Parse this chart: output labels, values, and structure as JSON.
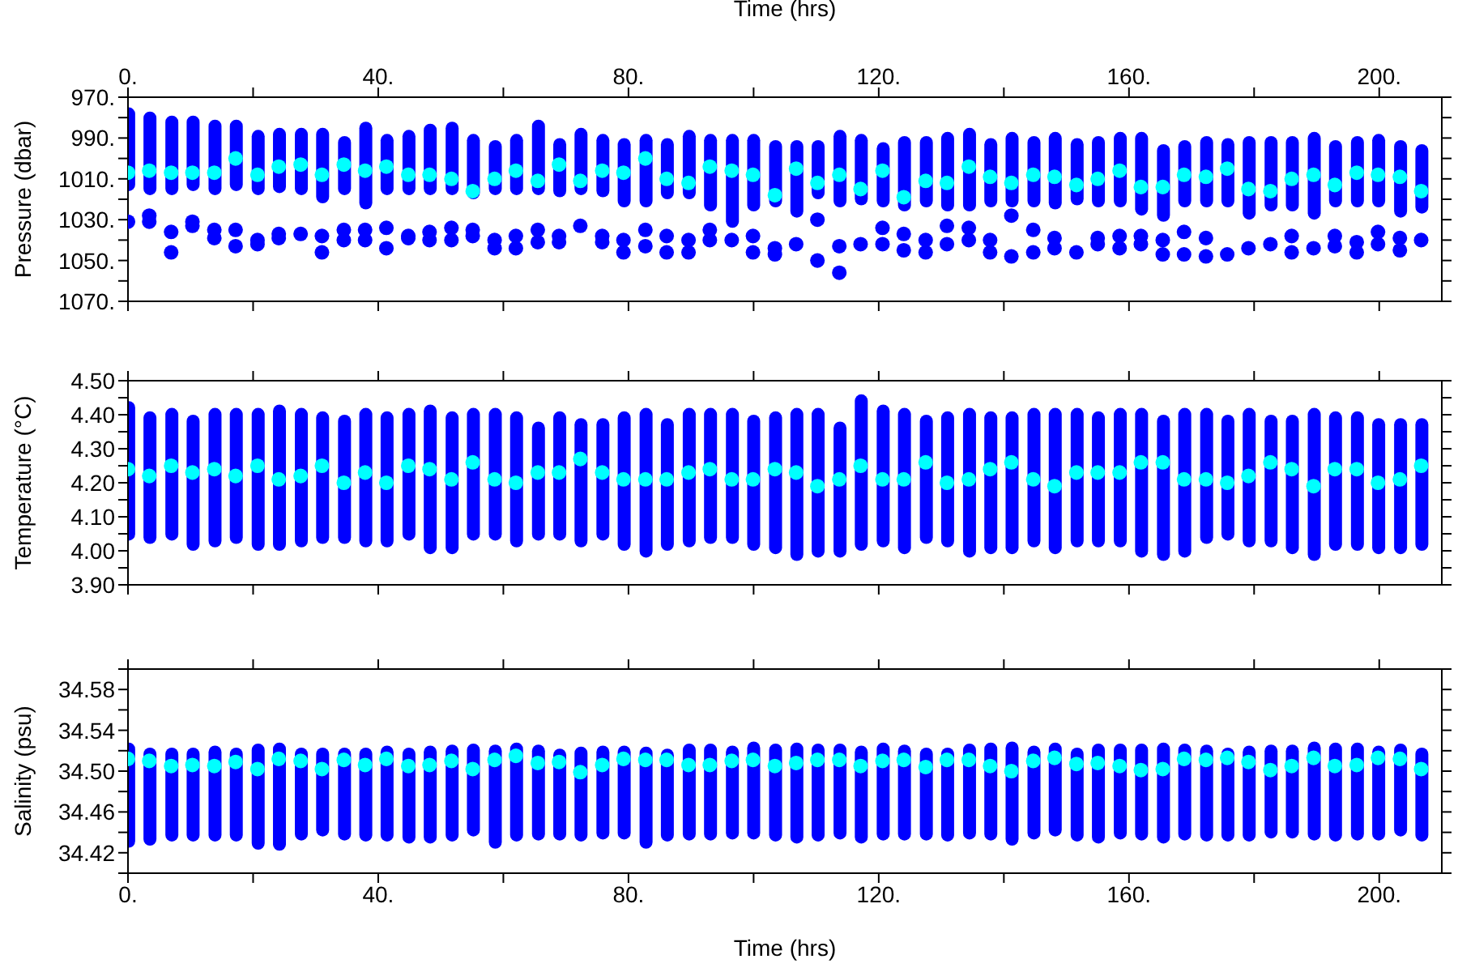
{
  "chart_data": [
    {
      "type": "scatter",
      "ylabel": "Pressure (dbar)",
      "x2label": "Time (hrs)",
      "marker": "circle",
      "tick_labels": "y",
      "x": [
        0,
        3.4,
        6.9,
        10.3,
        13.8,
        17.2,
        20.7,
        24.1,
        27.6,
        31.0,
        34.5,
        37.9,
        41.3,
        44.8,
        48.2,
        51.7,
        55.1,
        58.6,
        62.0,
        65.5,
        68.9,
        72.3,
        75.8,
        79.2,
        82.7,
        86.1,
        89.6,
        93.0,
        96.5,
        99.9,
        103.4,
        106.8,
        110.2,
        113.7,
        117.1,
        120.6,
        124.0,
        127.5,
        130.9,
        134.4,
        137.8,
        141.2,
        144.7,
        148.1,
        151.6,
        155.0,
        158.5,
        161.9,
        165.4,
        168.8,
        172.3,
        175.7,
        179.1,
        182.6,
        186.0,
        189.5,
        192.9,
        196.4,
        199.8,
        203.3,
        206.7
      ],
      "xlim": [
        0,
        210
      ],
      "xticks": [
        0,
        20,
        40,
        60,
        80,
        100,
        120,
        140,
        160,
        180,
        200
      ],
      "x2lim": [
        0,
        210
      ],
      "x2ticks": [
        {
          "value": 0,
          "label": "0."
        },
        {
          "value": 20,
          "label": null
        },
        {
          "value": 40,
          "label": "40."
        },
        {
          "value": 60,
          "label": null
        },
        {
          "value": 80,
          "label": "80."
        },
        {
          "value": 100,
          "label": null
        },
        {
          "value": 120,
          "label": "120."
        },
        {
          "value": 140,
          "label": null
        },
        {
          "value": 160,
          "label": "160."
        },
        {
          "value": 180,
          "label": null
        },
        {
          "value": 200,
          "label": "200."
        }
      ],
      "ylim": [
        1070,
        970
      ],
      "yticks": [
        {
          "value": 970,
          "label": "970."
        },
        {
          "value": 980,
          "label": null
        },
        {
          "value": 990,
          "label": "990."
        },
        {
          "value": 1000,
          "label": null
        },
        {
          "value": 1010,
          "label": "1010."
        },
        {
          "value": 1020,
          "label": null
        },
        {
          "value": 1030,
          "label": "1030."
        },
        {
          "value": 1040,
          "label": null
        },
        {
          "value": 1050,
          "label": "1050."
        },
        {
          "value": 1060,
          "label": null
        },
        {
          "value": 1070,
          "label": "1070."
        }
      ],
      "series": [
        {
          "type": "bar",
          "color": "#0000ff",
          "base": [
            975,
            977,
            979,
            979,
            981,
            981,
            986,
            985,
            985,
            985,
            989,
            982,
            988,
            986,
            983,
            982,
            988,
            991,
            988,
            981,
            990,
            985,
            988,
            990,
            988,
            990,
            986,
            988,
            988,
            988,
            991,
            991,
            991,
            986,
            988,
            992,
            989,
            989,
            987,
            985,
            990,
            987,
            989,
            987,
            990,
            989,
            987,
            987,
            993,
            991,
            989,
            990,
            989,
            989,
            989,
            987,
            991,
            989,
            988,
            991,
            993
          ],
          "values": [
            41,
            41,
            39,
            37,
            37,
            35,
            32,
            32,
            33,
            37,
            29,
            43,
            30,
            32,
            35,
            36,
            32,
            27,
            30,
            37,
            29,
            33,
            31,
            34,
            36,
            30,
            34,
            38,
            46,
            38,
            33,
            38,
            29,
            38,
            35,
            32,
            37,
            35,
            39,
            41,
            34,
            37,
            35,
            38,
            33,
            35,
            37,
            41,
            38,
            33,
            35,
            34,
            41,
            37,
            37,
            43,
            33,
            35,
            36,
            38,
            34
          ]
        },
        {
          "color": "#0000ff",
          "x": [
            0,
            3.4,
            3.4,
            6.9,
            6.9,
            10.3,
            10.3,
            13.8,
            13.8,
            17.2,
            17.2,
            20.7,
            20.7,
            24.1,
            24.1,
            27.6,
            31.0,
            31.0,
            34.5,
            34.5,
            37.9,
            37.9,
            41.3,
            41.3,
            44.8,
            44.8,
            48.2,
            48.2,
            51.7,
            51.7,
            55.1,
            55.1,
            58.6,
            58.6,
            62.0,
            62.0,
            65.5,
            65.5,
            68.9,
            68.9,
            72.3,
            75.8,
            75.8,
            79.2,
            79.2,
            82.7,
            82.7,
            86.1,
            86.1,
            89.6,
            89.6,
            93.0,
            93.0,
            96.5,
            99.9,
            99.9,
            103.4,
            103.4,
            106.8,
            110.2,
            110.2,
            113.7,
            113.7,
            117.1,
            120.6,
            120.6,
            124.0,
            124.0,
            127.5,
            127.5,
            130.9,
            130.9,
            134.4,
            134.4,
            137.8,
            137.8,
            141.2,
            141.2,
            144.7,
            144.7,
            148.1,
            148.1,
            151.6,
            155.0,
            155.0,
            158.5,
            158.5,
            161.9,
            161.9,
            165.4,
            165.4,
            168.8,
            168.8,
            172.3,
            172.3,
            175.7,
            179.1,
            182.6,
            186.0,
            186.0,
            189.5,
            192.9,
            192.9,
            196.4,
            196.4,
            199.8,
            199.8,
            203.3,
            203.3,
            206.7
          ],
          "values": [
            1031,
            1028,
            1031,
            1036,
            1046,
            1031,
            1033,
            1035,
            1039,
            1035,
            1043,
            1040,
            1042,
            1037,
            1039,
            1037,
            1038,
            1046,
            1035,
            1040,
            1035,
            1040,
            1034,
            1044,
            1038,
            1039,
            1036,
            1040,
            1034,
            1040,
            1035,
            1038,
            1040,
            1044,
            1038,
            1044,
            1035,
            1041,
            1038,
            1041,
            1033,
            1038,
            1041,
            1040,
            1046,
            1035,
            1043,
            1038,
            1046,
            1040,
            1046,
            1035,
            1040,
            1040,
            1038,
            1046,
            1044,
            1047,
            1042,
            1030,
            1050,
            1043,
            1056,
            1042,
            1034,
            1042,
            1037,
            1045,
            1040,
            1046,
            1033,
            1042,
            1034,
            1040,
            1040,
            1046,
            1028,
            1048,
            1035,
            1046,
            1039,
            1044,
            1046,
            1039,
            1042,
            1038,
            1044,
            1038,
            1042,
            1040,
            1047,
            1036,
            1047,
            1039,
            1048,
            1047,
            1044,
            1042,
            1038,
            1046,
            1044,
            1038,
            1043,
            1041,
            1046,
            1036,
            1042,
            1039,
            1045,
            1040
          ]
        },
        {
          "color": "#00ffff",
          "values": [
            1007,
            1006,
            1007,
            1007,
            1007,
            1000,
            1008,
            1004,
            1003,
            1008,
            1003,
            1006,
            1004,
            1008,
            1008,
            1010,
            1016,
            1010,
            1006,
            1011,
            1003,
            1011,
            1006,
            1007,
            1000,
            1010,
            1012,
            1004,
            1006,
            1008,
            1018,
            1005,
            1012,
            1008,
            1015,
            1006,
            1019,
            1011,
            1012,
            1004,
            1009,
            1012,
            1008,
            1009,
            1013,
            1010,
            1006,
            1014,
            1014,
            1008,
            1009,
            1005,
            1015,
            1016,
            1010,
            1008,
            1013,
            1007,
            1008,
            1009,
            1016
          ]
        }
      ]
    },
    {
      "type": "scatter",
      "ylabel": "Temperature (°C)",
      "marker": "circle",
      "tick_labels": "y",
      "x": [
        0,
        3.4,
        6.9,
        10.3,
        13.8,
        17.2,
        20.7,
        24.1,
        27.6,
        31.0,
        34.5,
        37.9,
        41.3,
        44.8,
        48.2,
        51.7,
        55.1,
        58.6,
        62.0,
        65.5,
        68.9,
        72.3,
        75.8,
        79.2,
        82.7,
        86.1,
        89.6,
        93.0,
        96.5,
        99.9,
        103.4,
        106.8,
        110.2,
        113.7,
        117.1,
        120.6,
        124.0,
        127.5,
        130.9,
        134.4,
        137.8,
        141.2,
        144.7,
        148.1,
        151.6,
        155.0,
        158.5,
        161.9,
        165.4,
        168.8,
        172.3,
        175.7,
        179.1,
        182.6,
        186.0,
        189.5,
        192.9,
        196.4,
        199.8,
        203.3,
        206.7
      ],
      "xlim": [
        0,
        210
      ],
      "xticks": [
        0,
        20,
        40,
        60,
        80,
        100,
        120,
        140,
        160,
        180,
        200
      ],
      "ylim": [
        3.9,
        4.5
      ],
      "yticks": [
        {
          "value": 3.9,
          "label": "3.90"
        },
        {
          "value": 3.95,
          "label": null
        },
        {
          "value": 4.0,
          "label": "4.00"
        },
        {
          "value": 4.05,
          "label": null
        },
        {
          "value": 4.1,
          "label": "4.10"
        },
        {
          "value": 4.15,
          "label": null
        },
        {
          "value": 4.2,
          "label": "4.20"
        },
        {
          "value": 4.25,
          "label": null
        },
        {
          "value": 4.3,
          "label": "4.30"
        },
        {
          "value": 4.35,
          "label": null
        },
        {
          "value": 4.4,
          "label": "4.40"
        },
        {
          "value": 4.45,
          "label": null
        },
        {
          "value": 4.5,
          "label": "4.50"
        }
      ],
      "series": [
        {
          "type": "bar",
          "color": "#0000ff",
          "base": [
            4.03,
            4.02,
            4.03,
            4.0,
            4.01,
            4.02,
            4.0,
            4.0,
            4.01,
            4.02,
            4.02,
            4.01,
            4.01,
            4.03,
            3.99,
            3.99,
            4.03,
            4.03,
            4.01,
            4.03,
            4.03,
            4.01,
            4.03,
            4.0,
            3.98,
            4.0,
            4.01,
            4.02,
            4.02,
            4.0,
            3.99,
            3.97,
            3.98,
            3.98,
            4.0,
            4.01,
            3.99,
            4.02,
            4.01,
            3.98,
            3.99,
            3.99,
            4.01,
            3.99,
            4.01,
            4.01,
            4.01,
            3.98,
            3.97,
            3.98,
            4.02,
            4.03,
            4.01,
            4.01,
            3.99,
            3.97,
            4.0,
            4.0,
            3.99,
            3.99,
            4.0
          ],
          "values": [
            0.41,
            0.39,
            0.39,
            0.4,
            0.41,
            0.4,
            0.42,
            0.43,
            0.41,
            0.39,
            0.38,
            0.41,
            0.4,
            0.39,
            0.44,
            0.42,
            0.39,
            0.39,
            0.4,
            0.35,
            0.38,
            0.38,
            0.36,
            0.41,
            0.44,
            0.39,
            0.41,
            0.4,
            0.4,
            0.4,
            0.42,
            0.45,
            0.44,
            0.4,
            0.46,
            0.42,
            0.43,
            0.38,
            0.4,
            0.44,
            0.42,
            0.42,
            0.41,
            0.43,
            0.41,
            0.4,
            0.41,
            0.44,
            0.43,
            0.44,
            0.4,
            0.37,
            0.41,
            0.39,
            0.41,
            0.45,
            0.41,
            0.41,
            0.4,
            0.4,
            0.39
          ]
        },
        {
          "color": "#00ffff",
          "values": [
            4.24,
            4.22,
            4.25,
            4.23,
            4.24,
            4.22,
            4.25,
            4.21,
            4.22,
            4.25,
            4.2,
            4.23,
            4.2,
            4.25,
            4.24,
            4.21,
            4.26,
            4.21,
            4.2,
            4.23,
            4.23,
            4.27,
            4.23,
            4.21,
            4.21,
            4.21,
            4.23,
            4.24,
            4.21,
            4.21,
            4.24,
            4.23,
            4.19,
            4.21,
            4.25,
            4.21,
            4.21,
            4.26,
            4.2,
            4.21,
            4.24,
            4.26,
            4.21,
            4.19,
            4.23,
            4.23,
            4.23,
            4.26,
            4.26,
            4.21,
            4.21,
            4.2,
            4.22,
            4.26,
            4.24,
            4.19,
            4.24,
            4.24,
            4.2,
            4.21,
            4.25
          ]
        }
      ]
    },
    {
      "type": "scatter",
      "ylabel": "Salinity (psu)",
      "xlabel": "Time (hrs)",
      "marker": "circle",
      "x": [
        0,
        3.4,
        6.9,
        10.3,
        13.8,
        17.2,
        20.7,
        24.1,
        27.6,
        31.0,
        34.5,
        37.9,
        41.3,
        44.8,
        48.2,
        51.7,
        55.1,
        58.6,
        62.0,
        65.5,
        68.9,
        72.3,
        75.8,
        79.2,
        82.7,
        86.1,
        89.6,
        93.0,
        96.5,
        99.9,
        103.4,
        106.8,
        110.2,
        113.7,
        117.1,
        120.6,
        124.0,
        127.5,
        130.9,
        134.4,
        137.8,
        141.2,
        144.7,
        148.1,
        151.6,
        155.0,
        158.5,
        161.9,
        165.4,
        168.8,
        172.3,
        175.7,
        179.1,
        182.6,
        186.0,
        189.5,
        192.9,
        196.4,
        199.8,
        203.3,
        206.7
      ],
      "xlim": [
        0,
        210
      ],
      "xticks": [
        {
          "value": 0,
          "label": "0."
        },
        {
          "value": 20,
          "label": null
        },
        {
          "value": 40,
          "label": "40."
        },
        {
          "value": 60,
          "label": null
        },
        {
          "value": 80,
          "label": "80."
        },
        {
          "value": 100,
          "label": null
        },
        {
          "value": 120,
          "label": "120."
        },
        {
          "value": 140,
          "label": null
        },
        {
          "value": 160,
          "label": "160."
        },
        {
          "value": 180,
          "label": null
        },
        {
          "value": 200,
          "label": "200."
        }
      ],
      "ylim": [
        34.4,
        34.6
      ],
      "yticks": [
        {
          "value": 34.4,
          "label": null
        },
        {
          "value": 34.42,
          "label": "34.42"
        },
        {
          "value": 34.44,
          "label": null
        },
        {
          "value": 34.46,
          "label": "34.46"
        },
        {
          "value": 34.48,
          "label": null
        },
        {
          "value": 34.5,
          "label": "34.50"
        },
        {
          "value": 34.52,
          "label": null
        },
        {
          "value": 34.54,
          "label": "34.54"
        },
        {
          "value": 34.56,
          "label": null
        },
        {
          "value": 34.58,
          "label": "34.58"
        },
        {
          "value": 34.6,
          "label": null
        }
      ],
      "series": [
        {
          "type": "bar",
          "color": "#0000ff",
          "base": [
            34.425,
            34.427,
            34.431,
            34.431,
            34.431,
            34.431,
            34.423,
            34.422,
            34.432,
            34.436,
            34.432,
            34.431,
            34.431,
            34.429,
            34.429,
            34.431,
            34.436,
            34.424,
            34.431,
            34.432,
            34.432,
            34.431,
            34.433,
            34.433,
            34.424,
            34.431,
            34.432,
            34.432,
            34.433,
            34.433,
            34.431,
            34.429,
            34.431,
            34.433,
            34.429,
            34.432,
            34.432,
            34.432,
            34.431,
            34.433,
            34.432,
            34.427,
            34.433,
            34.436,
            34.431,
            34.429,
            34.433,
            34.432,
            34.429,
            34.432,
            34.431,
            34.431,
            34.431,
            34.434,
            34.434,
            34.432,
            34.431,
            34.432,
            34.432,
            34.436,
            34.431
          ],
          "values": [
            0.103,
            0.096,
            0.092,
            0.092,
            0.094,
            0.092,
            0.104,
            0.106,
            0.091,
            0.087,
            0.091,
            0.092,
            0.094,
            0.094,
            0.096,
            0.095,
            0.091,
            0.102,
            0.097,
            0.094,
            0.09,
            0.093,
            0.092,
            0.092,
            0.1,
            0.091,
            0.095,
            0.095,
            0.092,
            0.096,
            0.096,
            0.099,
            0.096,
            0.094,
            0.096,
            0.096,
            0.094,
            0.091,
            0.092,
            0.094,
            0.096,
            0.102,
            0.092,
            0.092,
            0.092,
            0.098,
            0.094,
            0.095,
            0.099,
            0.095,
            0.095,
            0.092,
            0.094,
            0.092,
            0.092,
            0.097,
            0.097,
            0.096,
            0.093,
            0.091,
            0.092
          ]
        },
        {
          "color": "#00ffff",
          "values": [
            34.512,
            34.51,
            34.505,
            34.506,
            34.505,
            34.509,
            34.502,
            34.512,
            34.51,
            34.502,
            34.511,
            34.506,
            34.512,
            34.505,
            34.506,
            34.51,
            34.502,
            34.511,
            34.515,
            34.508,
            34.509,
            34.499,
            34.506,
            34.512,
            34.511,
            34.511,
            34.506,
            34.506,
            34.51,
            34.511,
            34.505,
            34.508,
            34.511,
            34.511,
            34.505,
            34.51,
            34.511,
            34.504,
            34.511,
            34.511,
            34.505,
            34.5,
            34.51,
            34.513,
            34.507,
            34.508,
            34.505,
            34.501,
            34.502,
            34.512,
            34.511,
            34.513,
            34.509,
            34.501,
            34.505,
            34.513,
            34.505,
            34.506,
            34.513,
            34.512,
            34.502
          ]
        }
      ]
    }
  ]
}
